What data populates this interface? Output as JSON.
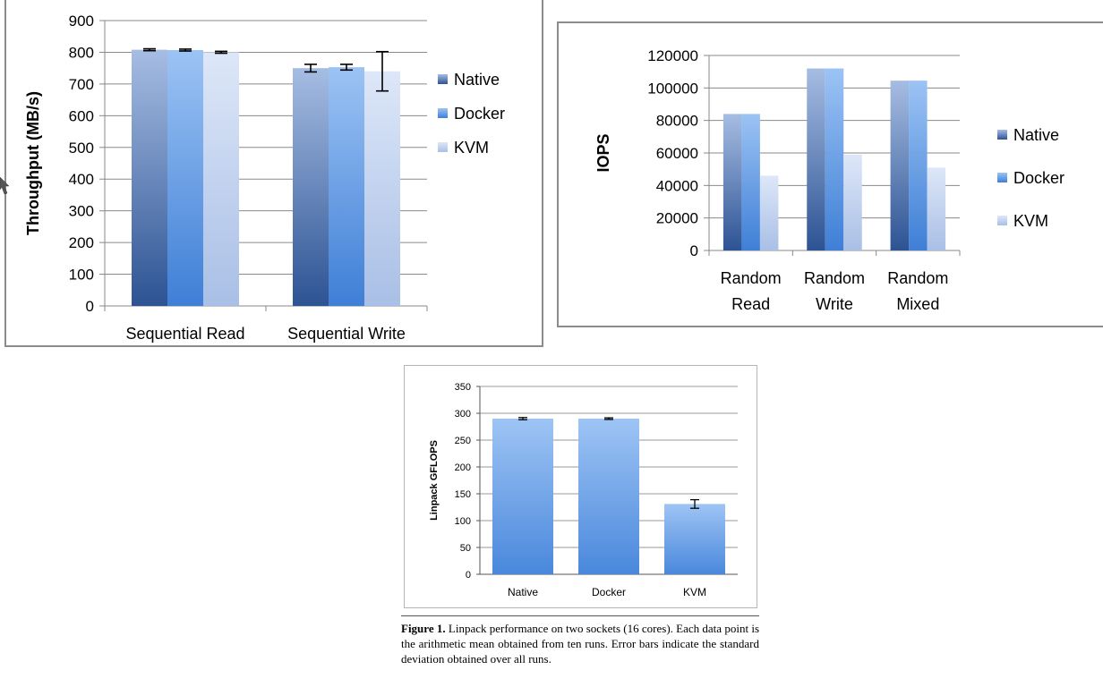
{
  "chart_data": [
    {
      "type": "bar",
      "categories": [
        "Sequential Read",
        "Sequential Write"
      ],
      "series": [
        {
          "name": "Native",
          "values": [
            808,
            750
          ],
          "error": [
            3,
            12
          ]
        },
        {
          "name": "Docker",
          "values": [
            807,
            753
          ],
          "error": [
            3,
            9
          ]
        },
        {
          "name": "KVM",
          "values": [
            800,
            740
          ],
          "error": [
            3,
            62
          ]
        }
      ],
      "title": "",
      "xlabel": "",
      "ylabel": "Throughput (MB/s)",
      "ylim": [
        0,
        900
      ],
      "yticks": [
        "0",
        "100",
        "200",
        "300",
        "400",
        "500",
        "600",
        "700",
        "800",
        "900"
      ],
      "grid": true,
      "legend": "right",
      "colors": {
        "Native": "#3d64a6",
        "Docker": "#4e8ee0",
        "KVM": "#b9cdef"
      }
    },
    {
      "type": "bar",
      "categories": [
        "Random Read",
        "Random Write",
        "Random Mixed"
      ],
      "category_lines": [
        [
          "Random",
          "Read"
        ],
        [
          "Random",
          "Write"
        ],
        [
          "Random",
          "Mixed"
        ]
      ],
      "series": [
        {
          "name": "Native",
          "values": [
            84000,
            112000,
            104500
          ]
        },
        {
          "name": "Docker",
          "values": [
            84000,
            112000,
            104500
          ]
        },
        {
          "name": "KVM",
          "values": [
            46000,
            59000,
            51000
          ]
        }
      ],
      "title": "",
      "xlabel": "",
      "ylabel": "IOPS",
      "ylim": [
        0,
        120000
      ],
      "yticks": [
        "0",
        "20000",
        "40000",
        "60000",
        "80000",
        "100000",
        "120000"
      ],
      "grid": true,
      "legend": "right",
      "colors": {
        "Native": "#3d64a6",
        "Docker": "#4e8ee0",
        "KVM": "#b9cdef"
      }
    },
    {
      "type": "bar",
      "categories": [
        "Native",
        "Docker",
        "KVM"
      ],
      "values": [
        290,
        290,
        131
      ],
      "error": [
        2,
        1.5,
        8
      ],
      "title": "",
      "xlabel": "",
      "ylabel": "Linpack GFLOPS",
      "ylim": [
        0,
        350
      ],
      "yticks": [
        "0",
        "50",
        "100",
        "150",
        "200",
        "250",
        "300",
        "350"
      ],
      "grid": true,
      "colors": {
        "bar": "#5a97e4"
      }
    }
  ],
  "caption": {
    "label": "Figure 1.",
    "text": "Linpack performance on two sockets (16 cores). Each data point is the arithmetic mean obtained from ten runs. Error bars indicate the standard deviation obtained over all runs."
  },
  "icons": {
    "cursor": "cursor-arrow-icon"
  }
}
